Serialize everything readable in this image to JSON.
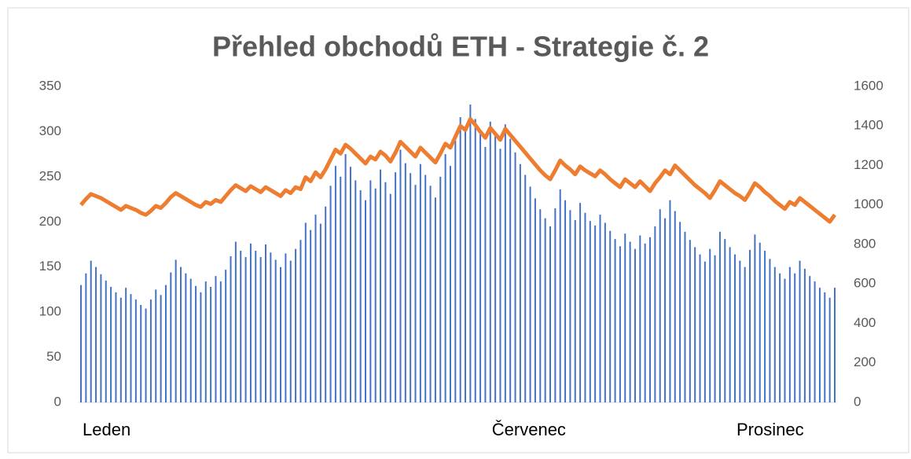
{
  "chart_data": {
    "type": "combo",
    "title": "Přehled obchodů ETH - Strategie č. 2",
    "categories": [
      "Leden",
      null,
      null,
      null,
      null,
      null,
      null,
      null,
      null,
      null,
      null,
      null,
      null,
      null,
      null,
      null,
      null,
      null,
      null,
      null,
      null,
      null,
      null,
      null,
      null,
      null,
      null,
      null,
      null,
      null,
      null,
      null,
      null,
      null,
      null,
      null,
      null,
      null,
      null,
      null,
      null,
      null,
      null,
      null,
      null,
      null,
      null,
      null,
      null,
      null,
      null,
      null,
      null,
      null,
      null,
      null,
      null,
      null,
      null,
      null,
      null,
      null,
      null,
      null,
      null,
      null,
      null,
      null,
      null,
      null,
      null,
      null,
      null,
      null,
      null,
      null,
      null,
      null,
      null,
      null,
      null,
      null,
      "Červenec",
      null,
      null,
      null,
      null,
      null,
      null,
      null,
      null,
      null,
      null,
      null,
      null,
      null,
      null,
      null,
      null,
      null,
      null,
      null,
      null,
      null,
      null,
      null,
      null,
      null,
      null,
      null,
      null,
      null,
      null,
      null,
      null,
      null,
      null,
      null,
      null,
      null,
      null,
      null,
      null,
      null,
      null,
      null,
      null,
      null,
      null,
      null,
      null,
      "Prosinec",
      null,
      null,
      null,
      null,
      null,
      null,
      null,
      null,
      null,
      null,
      null,
      null,
      null,
      null,
      null,
      null,
      null,
      null,
      null,
      null
    ],
    "series": [
      {
        "type": "bar",
        "axis": "y",
        "color": "#4472c4",
        "values": [
          130,
          143,
          157,
          150,
          142,
          135,
          128,
          122,
          116,
          127,
          120,
          114,
          108,
          104,
          114,
          125,
          119,
          130,
          144,
          158,
          150,
          143,
          137,
          129,
          122,
          134,
          128,
          140,
          134,
          147,
          162,
          178,
          168,
          161,
          176,
          168,
          161,
          175,
          166,
          158,
          150,
          165,
          157,
          170,
          180,
          199,
          191,
          208,
          198,
          217,
          240,
          262,
          250,
          275,
          261,
          246,
          235,
          224,
          246,
          237,
          258,
          244,
          231,
          255,
          280,
          265,
          254,
          241,
          264,
          252,
          240,
          227,
          250,
          275,
          262,
          290,
          316,
          305,
          330,
          314,
          297,
          283,
          311,
          295,
          281,
          308,
          292,
          277,
          264,
          252,
          239,
          226,
          214,
          204,
          195,
          215,
          236,
          224,
          213,
          202,
          221,
          210,
          201,
          196,
          208,
          199,
          190,
          181,
          173,
          187,
          178,
          170,
          185,
          176,
          183,
          195,
          214,
          204,
          224,
          212,
          200,
          189,
          180,
          172,
          164,
          156,
          170,
          163,
          189,
          181,
          172,
          164,
          157,
          150,
          169,
          186,
          177,
          168,
          159,
          150,
          143,
          137,
          150,
          143,
          157,
          148,
          140,
          134,
          127,
          122,
          116,
          127
        ]
      },
      {
        "type": "line",
        "axis": "y2",
        "color": "#ed7d31",
        "values": [
          1000,
          1030,
          1055,
          1045,
          1035,
          1020,
          1005,
          990,
          975,
          995,
          985,
          975,
          960,
          950,
          970,
          995,
          985,
          1010,
          1040,
          1060,
          1045,
          1030,
          1015,
          1000,
          990,
          1015,
          1005,
          1025,
          1015,
          1045,
          1075,
          1100,
          1085,
          1070,
          1095,
          1080,
          1065,
          1090,
          1075,
          1060,
          1045,
          1075,
          1060,
          1090,
          1080,
          1140,
          1120,
          1165,
          1140,
          1180,
          1230,
          1280,
          1260,
          1305,
          1285,
          1260,
          1235,
          1210,
          1245,
          1230,
          1270,
          1250,
          1220,
          1265,
          1320,
          1295,
          1270,
          1245,
          1290,
          1265,
          1240,
          1215,
          1260,
          1310,
          1290,
          1345,
          1400,
          1380,
          1435,
          1405,
          1370,
          1340,
          1390,
          1360,
          1330,
          1385,
          1355,
          1325,
          1295,
          1265,
          1235,
          1205,
          1175,
          1150,
          1130,
          1175,
          1225,
          1200,
          1180,
          1155,
          1195,
          1175,
          1160,
          1145,
          1175,
          1155,
          1130,
          1110,
          1090,
          1130,
          1110,
          1090,
          1120,
          1095,
          1070,
          1110,
          1140,
          1175,
          1155,
          1200,
          1175,
          1150,
          1125,
          1100,
          1080,
          1060,
          1035,
          1075,
          1120,
          1100,
          1080,
          1060,
          1045,
          1025,
          1065,
          1110,
          1090,
          1065,
          1045,
          1020,
          1000,
          980,
          1015,
          1000,
          1035,
          1015,
          995,
          975,
          955,
          935,
          915,
          950
        ]
      }
    ],
    "ylim": [
      0,
      350
    ],
    "yticks": [
      0,
      50,
      100,
      150,
      200,
      250,
      300,
      350
    ],
    "y2lim": [
      0,
      1600
    ],
    "y2ticks": [
      0,
      200,
      400,
      600,
      800,
      1000,
      1200,
      1400,
      1600
    ]
  }
}
